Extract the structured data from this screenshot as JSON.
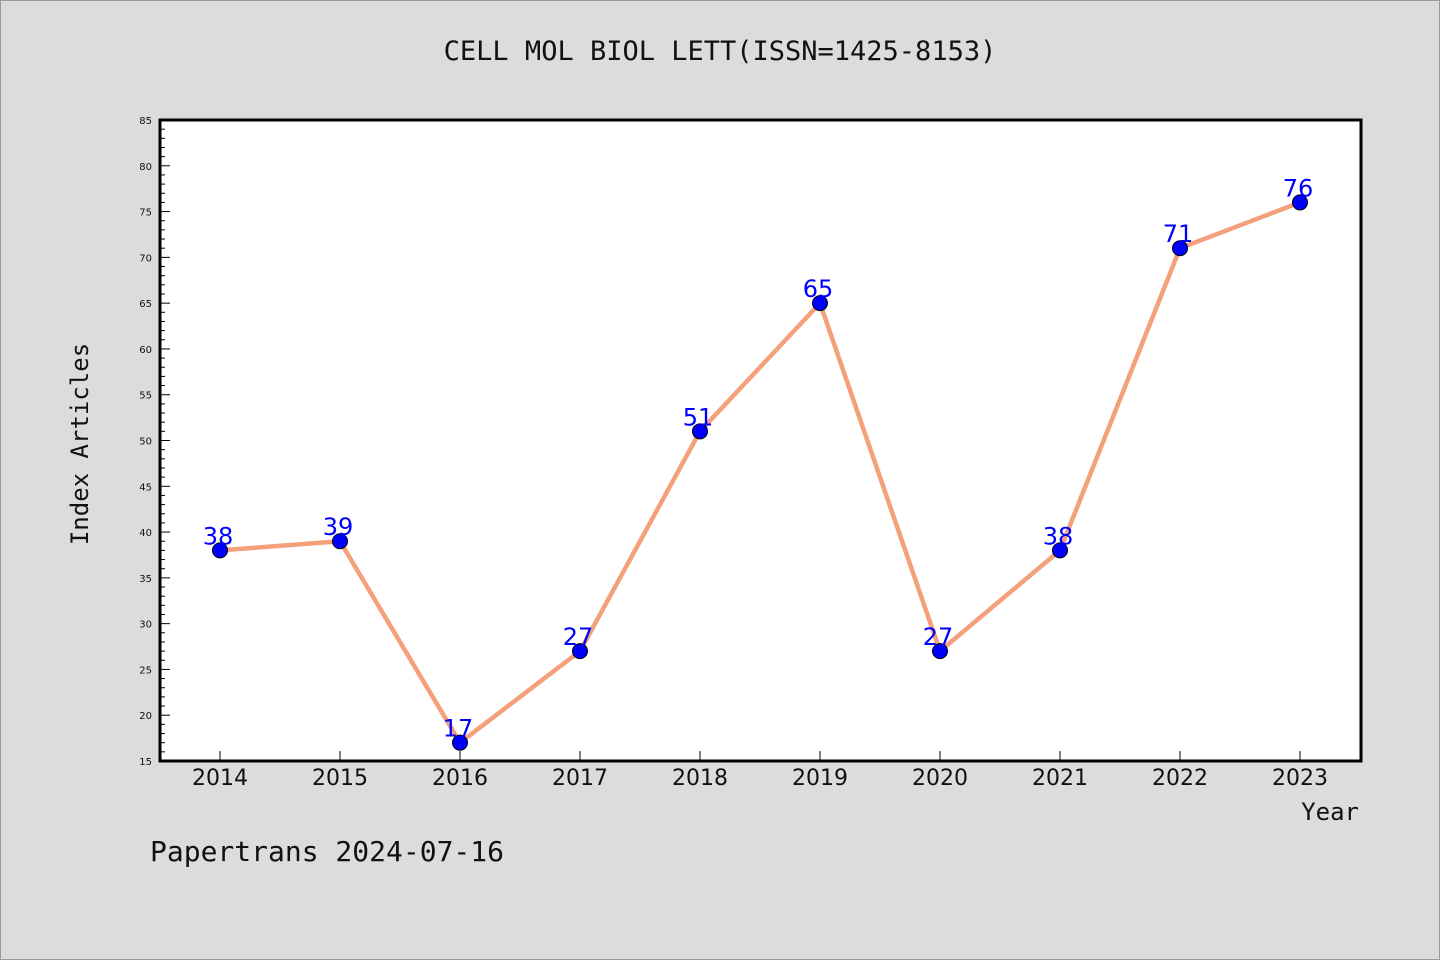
{
  "footer": {
    "credit": "Papertrans 2024-07-16"
  },
  "colors": {
    "line": "#f4a07a",
    "marker": "#0000ff",
    "label": "#0000ff",
    "background": "#dcdcdc",
    "plot_background": "#ffffff"
  },
  "chart_data": {
    "type": "line",
    "title": "CELL MOL BIOL LETT(ISSN=1425-8153)",
    "xlabel": "Year",
    "ylabel": "Index Articles",
    "x": [
      "2014",
      "2015",
      "2016",
      "2017",
      "2018",
      "2019",
      "2020",
      "2021",
      "2022",
      "2023"
    ],
    "series": [
      {
        "values": [
          38,
          39,
          17,
          27,
          51,
          65,
          27,
          38,
          71,
          76
        ]
      }
    ],
    "data_labels": [
      "38",
      "39",
      "17",
      "27",
      "51",
      "65",
      "27",
      "38",
      "71",
      "76"
    ],
    "ylim": [
      15,
      85
    ],
    "yticks": [
      15,
      20,
      25,
      30,
      35,
      40,
      45,
      50,
      55,
      60,
      65,
      70,
      75,
      80,
      85
    ],
    "grid": false,
    "legend": "none"
  }
}
